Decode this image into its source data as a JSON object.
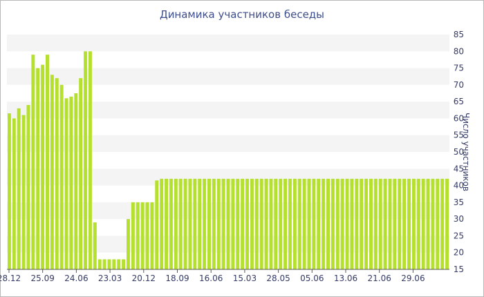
{
  "chart_data": {
    "type": "bar",
    "title": "Динамика участников беседы",
    "xlabel": "",
    "ylabel": "Число участников",
    "ylim": [
      15,
      85
    ],
    "yticks": [
      15,
      20,
      25,
      30,
      35,
      40,
      45,
      50,
      55,
      60,
      65,
      70,
      75,
      80,
      85
    ],
    "xtick_labels": [
      "28.12",
      "25.09",
      "24.06",
      "23.03",
      "20.12",
      "18.09",
      "16.06",
      "15.03",
      "28.05",
      "05.06",
      "13.06",
      "21.06",
      "29.06"
    ],
    "bar_color": "#b5e02e",
    "grid": "horizontal bands",
    "values": [
      61.5,
      60,
      63,
      61,
      64,
      79,
      75,
      76,
      79,
      73,
      72,
      70,
      66,
      66.5,
      67.5,
      72,
      80,
      80,
      29,
      18,
      18,
      18,
      18,
      18,
      18,
      30,
      35,
      35,
      35,
      35,
      35,
      41.5,
      42,
      42,
      42,
      42,
      42,
      42,
      42,
      42,
      42,
      42,
      42,
      42,
      42,
      42,
      42,
      42,
      42,
      42,
      42,
      42,
      42,
      42,
      42,
      42,
      42,
      42,
      42,
      42,
      42,
      42,
      42,
      42,
      42,
      42,
      42,
      42,
      42,
      42,
      42,
      42,
      42,
      42,
      42,
      42,
      42,
      42,
      42,
      42,
      42,
      42,
      42,
      42,
      42,
      42,
      42,
      42,
      42,
      42,
      42,
      42,
      42
    ]
  }
}
